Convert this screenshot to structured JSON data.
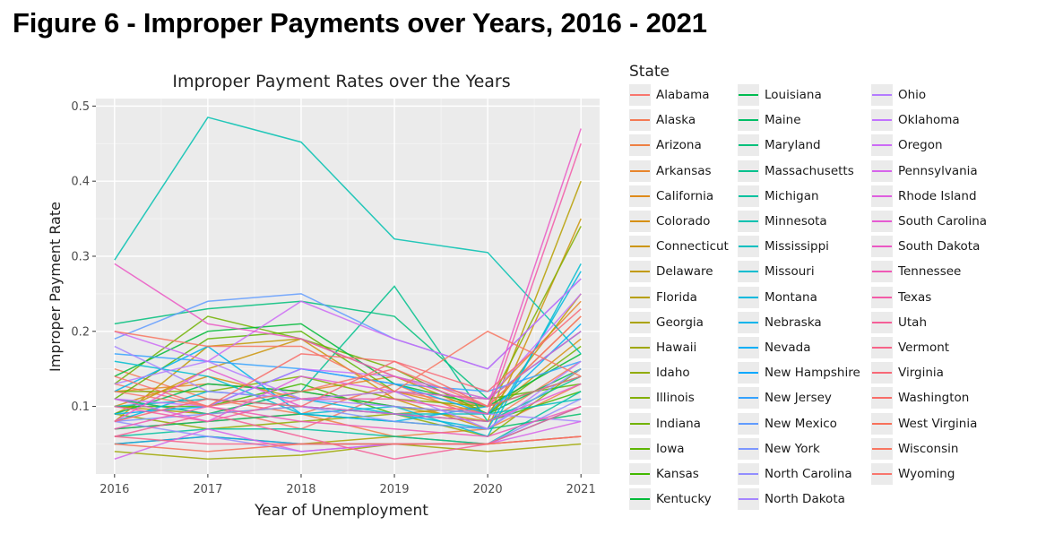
{
  "figure_title": "Figure 6 - Improper Payments over Years, 2016 - 2021",
  "chart_data": {
    "type": "line",
    "title": "Improper Payment Rates over the Years",
    "xlabel": "Year of Unemployment",
    "ylabel": "Improper Payment Rate",
    "x": [
      2016,
      2017,
      2018,
      2019,
      2020,
      2021
    ],
    "x_ticks": [
      "2016",
      "2017",
      "2018",
      "2019",
      "2020",
      "2021"
    ],
    "y_ticks": [
      "0.1",
      "0.2",
      "0.3",
      "0.4",
      "0.5"
    ],
    "xlim": [
      2015.8,
      2021.2
    ],
    "ylim": [
      0.01,
      0.51
    ],
    "grid": true,
    "legend_title": "State",
    "legend_placement": "right",
    "series": [
      {
        "name": "Alabama",
        "color": "#F8766D",
        "values": [
          0.13,
          0.1,
          0.07,
          0.12,
          0.1,
          0.14
        ]
      },
      {
        "name": "Alaska",
        "color": "#F47A54",
        "values": [
          0.15,
          0.11,
          0.09,
          0.13,
          0.08,
          0.16
        ]
      },
      {
        "name": "Arizona",
        "color": "#EE8043",
        "values": [
          0.07,
          0.08,
          0.09,
          0.06,
          0.07,
          0.13
        ]
      },
      {
        "name": "Arkansas",
        "color": "#E7852C",
        "values": [
          0.12,
          0.13,
          0.12,
          0.14,
          0.11,
          0.24
        ]
      },
      {
        "name": "California",
        "color": "#DF8B1B",
        "values": [
          0.11,
          0.09,
          0.1,
          0.09,
          0.1,
          0.22
        ]
      },
      {
        "name": "Colorado",
        "color": "#D69010",
        "values": [
          0.1,
          0.14,
          0.11,
          0.12,
          0.09,
          0.19
        ]
      },
      {
        "name": "Connecticut",
        "color": "#CC950A",
        "values": [
          0.09,
          0.15,
          0.19,
          0.11,
          0.07,
          0.35
        ]
      },
      {
        "name": "Delaware",
        "color": "#C29A04",
        "values": [
          0.08,
          0.18,
          0.19,
          0.14,
          0.09,
          0.25
        ]
      },
      {
        "name": "Florida",
        "color": "#B79F00",
        "values": [
          0.1,
          0.09,
          0.12,
          0.1,
          0.08,
          0.4
        ]
      },
      {
        "name": "Georgia",
        "color": "#ABA300",
        "values": [
          0.05,
          0.06,
          0.05,
          0.06,
          0.05,
          0.06
        ]
      },
      {
        "name": "Hawaii",
        "color": "#9FA700",
        "values": [
          0.04,
          0.03,
          0.035,
          0.05,
          0.04,
          0.05
        ]
      },
      {
        "name": "Idaho",
        "color": "#91AB00",
        "values": [
          0.09,
          0.07,
          0.08,
          0.09,
          0.06,
          0.15
        ]
      },
      {
        "name": "Illinois",
        "color": "#82AF00",
        "values": [
          0.12,
          0.12,
          0.14,
          0.11,
          0.1,
          0.34
        ]
      },
      {
        "name": "Indiana",
        "color": "#71B200",
        "values": [
          0.13,
          0.22,
          0.19,
          0.15,
          0.09,
          0.18
        ]
      },
      {
        "name": "Iowa",
        "color": "#5DB500",
        "values": [
          0.11,
          0.19,
          0.2,
          0.12,
          0.11,
          0.13
        ]
      },
      {
        "name": "Kansas",
        "color": "#42B800",
        "values": [
          0.1,
          0.1,
          0.13,
          0.09,
          0.08,
          0.12
        ]
      },
      {
        "name": "Kentucky",
        "color": "#00BA38",
        "values": [
          0.14,
          0.2,
          0.21,
          0.13,
          0.1,
          0.17
        ]
      },
      {
        "name": "Louisiana",
        "color": "#00BC51",
        "values": [
          0.09,
          0.13,
          0.12,
          0.1,
          0.09,
          0.15
        ]
      },
      {
        "name": "Maine",
        "color": "#00BE67",
        "values": [
          0.07,
          0.08,
          0.09,
          0.08,
          0.07,
          0.09
        ]
      },
      {
        "name": "Maryland",
        "color": "#00C07B",
        "values": [
          0.21,
          0.23,
          0.24,
          0.22,
          0.11,
          0.2
        ]
      },
      {
        "name": "Massachusetts",
        "color": "#00C18D",
        "values": [
          0.11,
          0.09,
          0.12,
          0.26,
          0.08,
          0.14
        ]
      },
      {
        "name": "Michigan",
        "color": "#00C19F",
        "values": [
          0.06,
          0.07,
          0.07,
          0.06,
          0.05,
          0.12
        ]
      },
      {
        "name": "Minnesota",
        "color": "#00C1B0",
        "values": [
          0.295,
          0.485,
          0.452,
          0.323,
          0.305,
          0.17
        ]
      },
      {
        "name": "Mississippi",
        "color": "#00BFC0",
        "values": [
          0.1,
          0.11,
          0.1,
          0.09,
          0.09,
          0.11
        ]
      },
      {
        "name": "Missouri",
        "color": "#00BDD0",
        "values": [
          0.16,
          0.14,
          0.09,
          0.1,
          0.06,
          0.29
        ]
      },
      {
        "name": "Montana",
        "color": "#00B9DE",
        "values": [
          0.08,
          0.12,
          0.11,
          0.09,
          0.07,
          0.28
        ]
      },
      {
        "name": "Nebraska",
        "color": "#00B4EB",
        "values": [
          0.12,
          0.18,
          0.09,
          0.08,
          0.1,
          0.14
        ]
      },
      {
        "name": "Nevada",
        "color": "#00AFF7",
        "values": [
          0.09,
          0.1,
          0.15,
          0.13,
          0.09,
          0.21
        ]
      },
      {
        "name": "New Hampshire",
        "color": "#00A8FF",
        "values": [
          0.05,
          0.06,
          0.05,
          0.05,
          0.05,
          0.1
        ]
      },
      {
        "name": "New Jersey",
        "color": "#35A2FF",
        "values": [
          0.17,
          0.16,
          0.15,
          0.13,
          0.12,
          0.16
        ]
      },
      {
        "name": "New Mexico",
        "color": "#619CFF",
        "values": [
          0.19,
          0.24,
          0.25,
          0.19,
          0.15,
          0.27
        ]
      },
      {
        "name": "New York",
        "color": "#7C96FF",
        "values": [
          0.08,
          0.09,
          0.1,
          0.08,
          0.07,
          0.15
        ]
      },
      {
        "name": "North Carolina",
        "color": "#928EFF",
        "values": [
          0.08,
          0.06,
          0.04,
          0.05,
          0.05,
          0.11
        ]
      },
      {
        "name": "North Dakota",
        "color": "#A585FF",
        "values": [
          0.18,
          0.12,
          0.11,
          0.1,
          0.09,
          0.08
        ]
      },
      {
        "name": "Ohio",
        "color": "#B47CFF",
        "values": [
          0.13,
          0.16,
          0.11,
          0.12,
          0.07,
          0.16
        ]
      },
      {
        "name": "Oklahoma",
        "color": "#C173FF",
        "values": [
          0.11,
          0.1,
          0.15,
          0.14,
          0.11,
          0.25
        ]
      },
      {
        "name": "Oregon",
        "color": "#CC6BF6",
        "values": [
          0.2,
          0.16,
          0.24,
          0.19,
          0.15,
          0.27
        ]
      },
      {
        "name": "Pennsylvania",
        "color": "#D664EB",
        "values": [
          0.03,
          0.07,
          0.04,
          0.05,
          0.05,
          0.08
        ]
      },
      {
        "name": "Rhode Island",
        "color": "#DF5EDF",
        "values": [
          0.11,
          0.08,
          0.14,
          0.12,
          0.11,
          0.2
        ]
      },
      {
        "name": "South Carolina",
        "color": "#E65AD2",
        "values": [
          0.08,
          0.15,
          0.1,
          0.09,
          0.08,
          0.13
        ]
      },
      {
        "name": "South Dakota",
        "color": "#EB58C4",
        "values": [
          0.29,
          0.21,
          0.19,
          0.14,
          0.1,
          0.47
        ]
      },
      {
        "name": "Tennessee",
        "color": "#EF58B6",
        "values": [
          0.07,
          0.1,
          0.08,
          0.07,
          0.06,
          0.1
        ]
      },
      {
        "name": "Texas",
        "color": "#F35BA7",
        "values": [
          0.1,
          0.08,
          0.11,
          0.11,
          0.09,
          0.45
        ]
      },
      {
        "name": "Utah",
        "color": "#F55F98",
        "values": [
          0.06,
          0.09,
          0.06,
          0.03,
          0.05,
          0.06
        ]
      },
      {
        "name": "Vermont",
        "color": "#F76388",
        "values": [
          0.06,
          0.05,
          0.05,
          0.05,
          0.05,
          0.1
        ]
      },
      {
        "name": "Virginia",
        "color": "#F86877",
        "values": [
          0.08,
          0.11,
          0.1,
          0.16,
          0.12,
          0.23
        ]
      },
      {
        "name": "Washington",
        "color": "#F86D68",
        "values": [
          0.14,
          0.1,
          0.17,
          0.16,
          0.1,
          0.14
        ]
      },
      {
        "name": "West Virginia",
        "color": "#F8715A",
        "values": [
          0.05,
          0.04,
          0.05,
          0.05,
          0.05,
          0.06
        ]
      },
      {
        "name": "Wisconsin",
        "color": "#F87560",
        "values": [
          0.2,
          0.18,
          0.18,
          0.12,
          0.2,
          0.14
        ]
      },
      {
        "name": "Wyoming",
        "color": "#F8766D",
        "values": [
          0.12,
          0.1,
          0.12,
          0.15,
          0.1,
          0.22
        ]
      }
    ]
  }
}
